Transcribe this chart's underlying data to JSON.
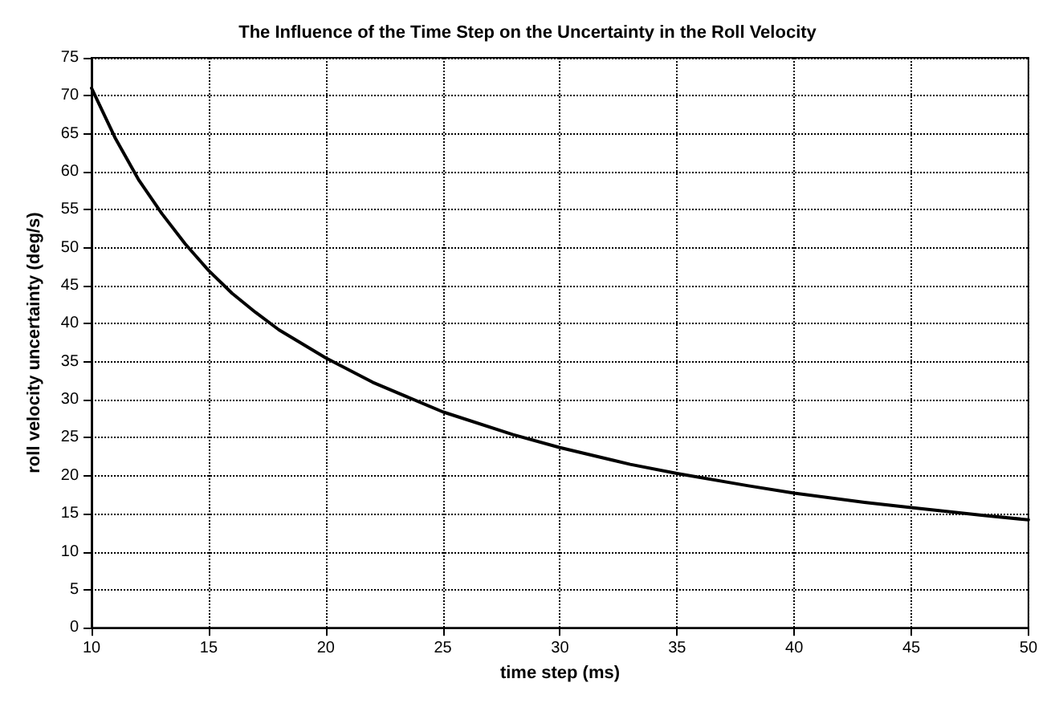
{
  "chart_data": {
    "type": "line",
    "title": "The Influence of the Time Step on the Uncertainty in the Roll Velocity",
    "xlabel": "time step (ms)",
    "ylabel": "roll velocity uncertainty (deg/s)",
    "x": [
      10,
      11,
      12,
      13,
      14,
      15,
      16,
      17,
      18,
      20,
      22,
      25,
      28,
      30,
      33,
      35,
      38,
      40,
      43,
      45,
      48,
      50
    ],
    "series": [
      {
        "color": "#000000",
        "values": [
          71,
          64.5,
          59,
          54.5,
          50.5,
          47,
          44,
          41.5,
          39.2,
          35.5,
          32.3,
          28.4,
          25.4,
          23.7,
          21.5,
          20.3,
          18.7,
          17.7,
          16.5,
          15.8,
          14.8,
          14.2
        ]
      }
    ],
    "xlim": [
      10,
      50
    ],
    "xticks": [
      10,
      15,
      20,
      25,
      30,
      35,
      40,
      45,
      50
    ],
    "ylim": [
      0,
      75
    ],
    "yticks": [
      0,
      5,
      10,
      15,
      20,
      25,
      30,
      35,
      40,
      45,
      50,
      55,
      60,
      65,
      70,
      75
    ],
    "grid": true,
    "marker": "none",
    "line_style": "solid"
  }
}
